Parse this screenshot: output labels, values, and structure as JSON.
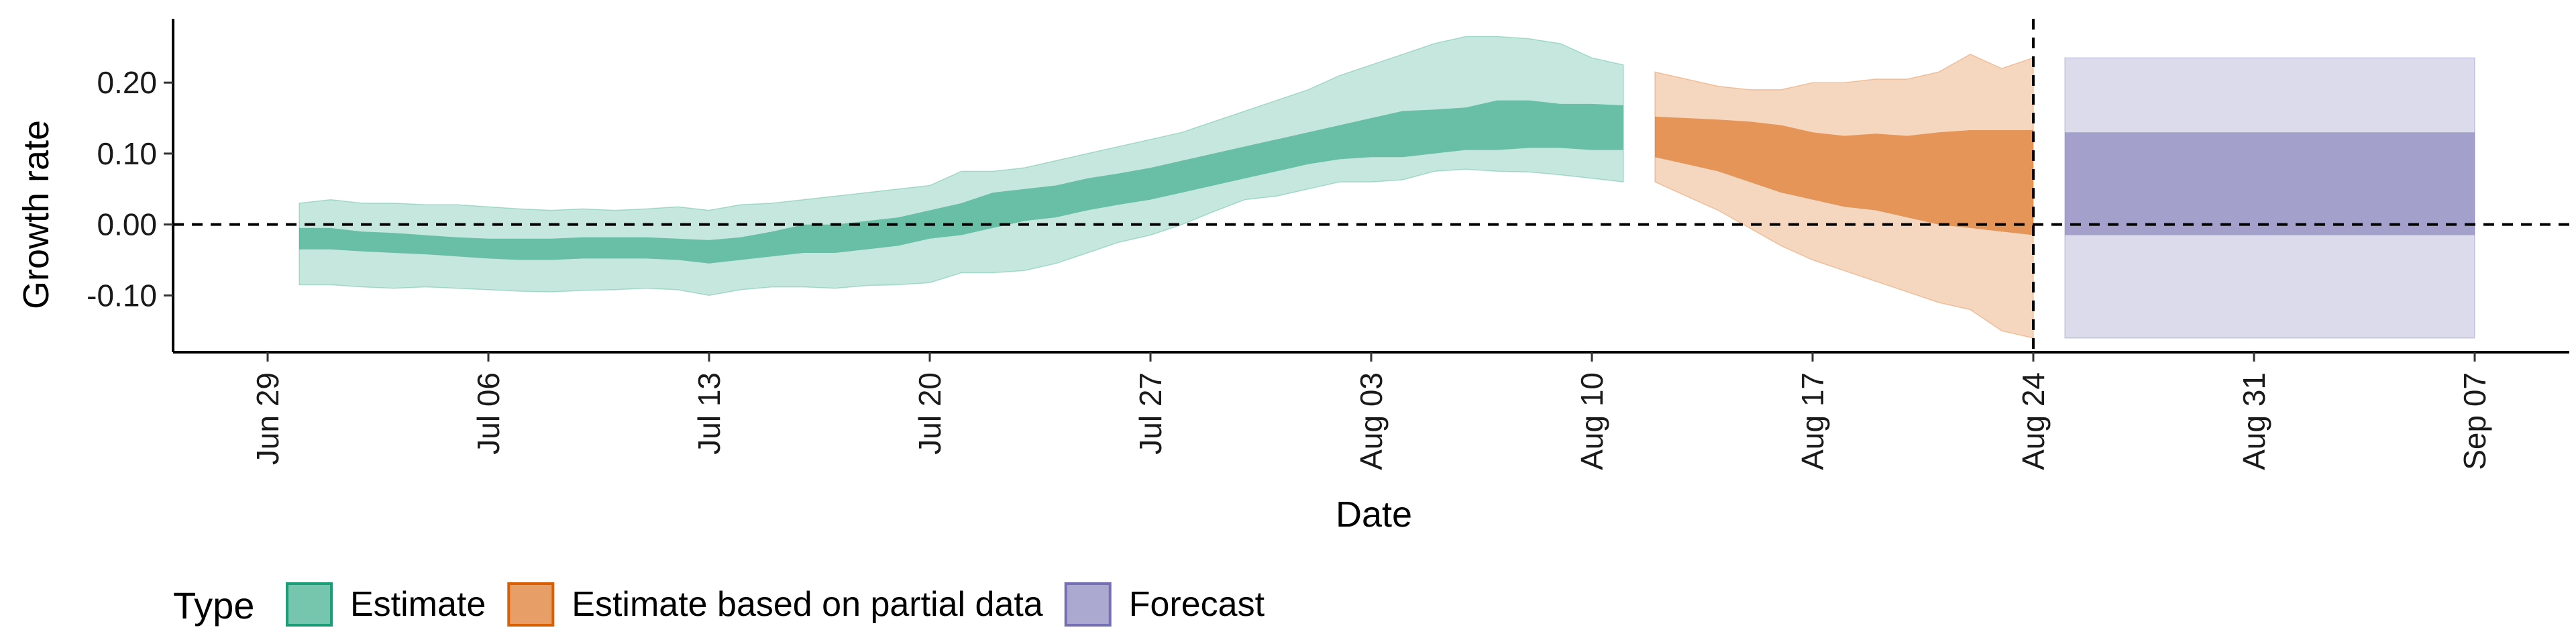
{
  "chart_data": {
    "type": "area",
    "xlabel": "Date",
    "ylabel": "Growth rate",
    "x_tick_labels": [
      "Jun 29",
      "Jul 06",
      "Jul 13",
      "Jul 20",
      "Jul 27",
      "Aug 03",
      "Aug 10",
      "Aug 17",
      "Aug 24",
      "Aug 31",
      "Sep 07"
    ],
    "x_tick_dates": [
      "2020-06-29",
      "2020-07-06",
      "2020-07-13",
      "2020-07-20",
      "2020-07-27",
      "2020-08-03",
      "2020-08-10",
      "2020-08-17",
      "2020-08-24",
      "2020-08-31",
      "2020-09-07"
    ],
    "y_tick_labels": [
      "0.20",
      "0.10",
      "0.00",
      "-0.10"
    ],
    "y_tick_values": [
      0.2,
      0.1,
      0.0,
      -0.1
    ],
    "xlim": [
      "2020-06-26",
      "2020-09-10"
    ],
    "ylim": [
      -0.18,
      0.29
    ],
    "reference_lines": {
      "horizontal_y": 0.0,
      "vertical_x": "2020-08-24"
    },
    "legend": {
      "title": "Type",
      "placement": "bottom",
      "entries": [
        "Estimate",
        "Estimate based on partial data",
        "Forecast"
      ]
    },
    "colors": {
      "Estimate": "#1b9e77",
      "Estimate based on partial data": "#d95f02",
      "Forecast": "#7570b3",
      "reference_line": "#000000"
    },
    "series": [
      {
        "name": "Estimate",
        "x": [
          "2020-06-30",
          "2020-07-01",
          "2020-07-02",
          "2020-07-03",
          "2020-07-04",
          "2020-07-05",
          "2020-07-06",
          "2020-07-07",
          "2020-07-08",
          "2020-07-09",
          "2020-07-10",
          "2020-07-11",
          "2020-07-12",
          "2020-07-13",
          "2020-07-14",
          "2020-07-15",
          "2020-07-16",
          "2020-07-17",
          "2020-07-18",
          "2020-07-19",
          "2020-07-20",
          "2020-07-21",
          "2020-07-22",
          "2020-07-23",
          "2020-07-24",
          "2020-07-25",
          "2020-07-26",
          "2020-07-27",
          "2020-07-28",
          "2020-07-29",
          "2020-07-30",
          "2020-07-31",
          "2020-08-01",
          "2020-08-02",
          "2020-08-03",
          "2020-08-04",
          "2020-08-05",
          "2020-08-06",
          "2020-08-07",
          "2020-08-08",
          "2020-08-09",
          "2020-08-10",
          "2020-08-11"
        ],
        "lower90": [
          -0.085,
          -0.085,
          -0.088,
          -0.09,
          -0.088,
          -0.09,
          -0.092,
          -0.094,
          -0.095,
          -0.093,
          -0.092,
          -0.09,
          -0.092,
          -0.1,
          -0.092,
          -0.088,
          -0.088,
          -0.09,
          -0.086,
          -0.085,
          -0.082,
          -0.068,
          -0.068,
          -0.065,
          -0.055,
          -0.04,
          -0.025,
          -0.015,
          0.0,
          0.018,
          0.035,
          0.04,
          0.05,
          0.06,
          0.06,
          0.063,
          0.075,
          0.078,
          0.075,
          0.074,
          0.07,
          0.065,
          0.06
        ],
        "lower50": [
          -0.035,
          -0.035,
          -0.038,
          -0.04,
          -0.042,
          -0.045,
          -0.048,
          -0.05,
          -0.05,
          -0.048,
          -0.048,
          -0.048,
          -0.05,
          -0.055,
          -0.05,
          -0.045,
          -0.04,
          -0.04,
          -0.035,
          -0.03,
          -0.02,
          -0.015,
          -0.005,
          0.005,
          0.01,
          0.02,
          0.028,
          0.035,
          0.045,
          0.055,
          0.065,
          0.075,
          0.085,
          0.092,
          0.095,
          0.095,
          0.1,
          0.105,
          0.105,
          0.108,
          0.108,
          0.105,
          0.105
        ],
        "upper50": [
          -0.005,
          -0.005,
          -0.01,
          -0.012,
          -0.015,
          -0.018,
          -0.02,
          -0.02,
          -0.02,
          -0.018,
          -0.018,
          -0.018,
          -0.02,
          -0.022,
          -0.018,
          -0.01,
          0.0,
          0.0,
          0.005,
          0.01,
          0.02,
          0.03,
          0.045,
          0.05,
          0.055,
          0.065,
          0.072,
          0.08,
          0.09,
          0.1,
          0.11,
          0.12,
          0.13,
          0.14,
          0.15,
          0.16,
          0.162,
          0.165,
          0.175,
          0.175,
          0.17,
          0.17,
          0.168
        ],
        "upper90": [
          0.03,
          0.035,
          0.03,
          0.03,
          0.028,
          0.028,
          0.025,
          0.022,
          0.02,
          0.022,
          0.02,
          0.022,
          0.025,
          0.02,
          0.028,
          0.03,
          0.035,
          0.04,
          0.045,
          0.05,
          0.055,
          0.075,
          0.075,
          0.08,
          0.09,
          0.1,
          0.11,
          0.12,
          0.13,
          0.145,
          0.16,
          0.175,
          0.19,
          0.21,
          0.225,
          0.24,
          0.255,
          0.265,
          0.265,
          0.262,
          0.255,
          0.235,
          0.225
        ]
      },
      {
        "name": "Estimate based on partial data",
        "x": [
          "2020-08-12",
          "2020-08-13",
          "2020-08-14",
          "2020-08-15",
          "2020-08-16",
          "2020-08-17",
          "2020-08-18",
          "2020-08-19",
          "2020-08-20",
          "2020-08-21",
          "2020-08-22",
          "2020-08-23",
          "2020-08-24"
        ],
        "lower90": [
          0.06,
          0.04,
          0.02,
          -0.005,
          -0.03,
          -0.05,
          -0.065,
          -0.08,
          -0.095,
          -0.11,
          -0.12,
          -0.15,
          -0.16
        ],
        "lower50": [
          0.095,
          0.085,
          0.075,
          0.06,
          0.045,
          0.035,
          0.025,
          0.02,
          0.01,
          0.0,
          -0.005,
          -0.01,
          -0.015
        ],
        "upper50": [
          0.152,
          0.15,
          0.148,
          0.145,
          0.14,
          0.13,
          0.125,
          0.128,
          0.125,
          0.13,
          0.133,
          0.133,
          0.133
        ],
        "upper90": [
          0.215,
          0.205,
          0.195,
          0.19,
          0.19,
          0.2,
          0.2,
          0.205,
          0.205,
          0.215,
          0.24,
          0.22,
          0.235
        ]
      },
      {
        "name": "Forecast",
        "x": [
          "2020-08-25",
          "2020-09-07"
        ],
        "lower90": [
          -0.16,
          -0.16
        ],
        "lower50": [
          -0.015,
          -0.015
        ],
        "upper50": [
          0.13,
          0.13
        ],
        "upper90": [
          0.235,
          0.235
        ]
      }
    ]
  }
}
